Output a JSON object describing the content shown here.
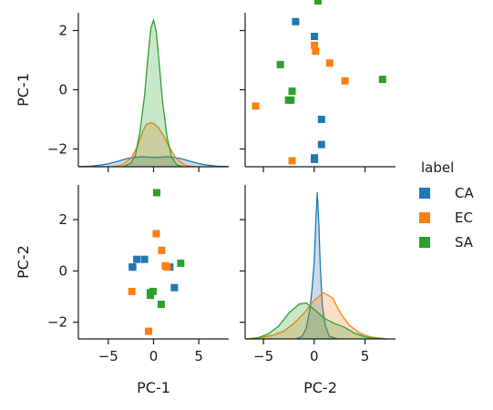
{
  "chart_data": {
    "type": "pairplot",
    "variables": [
      "PC-1",
      "PC-2"
    ],
    "hue_title": "label",
    "series": [
      {
        "name": "CA",
        "color": "#1f77b4",
        "marker": "square",
        "points": [
          {
            "pc1": 2.3,
            "pc2": -0.65
          },
          {
            "pc1": 1.8,
            "pc2": 0.15
          },
          {
            "pc1": -1.0,
            "pc2": 0.45
          },
          {
            "pc1": -2.35,
            "pc2": 0.15
          },
          {
            "pc1": -1.85,
            "pc2": 0.45
          },
          {
            "pc1": -2.3,
            "pc2": 0.15
          }
        ],
        "kde_pc1": [
          [
            -8.3,
            0.002
          ],
          [
            -7,
            0.005
          ],
          [
            -6,
            0.012
          ],
          [
            -5,
            0.025
          ],
          [
            -4,
            0.045
          ],
          [
            -3,
            0.068
          ],
          [
            -2,
            0.081
          ],
          [
            -1.2,
            0.085
          ],
          [
            -0.5,
            0.082
          ],
          [
            0,
            0.079
          ],
          [
            0.6,
            0.081
          ],
          [
            1.3,
            0.085
          ],
          [
            2,
            0.083
          ],
          [
            3,
            0.07
          ],
          [
            4,
            0.048
          ],
          [
            5,
            0.027
          ],
          [
            6,
            0.013
          ],
          [
            7,
            0.005
          ],
          [
            8.3,
            0.002
          ]
        ],
        "kde_pc2": [
          [
            -1.8,
            0
          ],
          [
            -1.2,
            0.01
          ],
          [
            -0.8,
            0.04
          ],
          [
            -0.4,
            0.12
          ],
          [
            -0.2,
            0.2
          ],
          [
            0,
            0.3
          ],
          [
            0.15,
            0.45
          ],
          [
            0.3,
            0.57
          ],
          [
            0.45,
            0.45
          ],
          [
            0.6,
            0.28
          ],
          [
            0.8,
            0.13
          ],
          [
            1.1,
            0.05
          ],
          [
            1.5,
            0.01
          ],
          [
            2.3,
            0
          ]
        ]
      },
      {
        "name": "EC",
        "color": "#ff7f0e",
        "marker": "square",
        "points": [
          {
            "pc1": 1.5,
            "pc2": 0.15
          },
          {
            "pc1": 0.3,
            "pc2": 1.45
          },
          {
            "pc1": 1.3,
            "pc2": 0.2
          },
          {
            "pc1": -2.4,
            "pc2": -0.8
          },
          {
            "pc1": 0.9,
            "pc2": 0.8
          },
          {
            "pc1": -0.55,
            "pc2": -2.35
          }
        ],
        "kde_pc1": [
          [
            -4.5,
            0.002
          ],
          [
            -3.5,
            0.015
          ],
          [
            -2.5,
            0.07
          ],
          [
            -1.8,
            0.17
          ],
          [
            -1.2,
            0.3
          ],
          [
            -0.8,
            0.36
          ],
          [
            -0.3,
            0.375
          ],
          [
            0,
            0.37
          ],
          [
            0.6,
            0.33
          ],
          [
            1.2,
            0.25
          ],
          [
            1.8,
            0.16
          ],
          [
            2.5,
            0.07
          ],
          [
            3.5,
            0.012
          ],
          [
            4.5,
            0.001
          ]
        ],
        "kde_pc2": [
          [
            -6.8,
            0
          ],
          [
            -5.5,
            0.004
          ],
          [
            -4,
            0.015
          ],
          [
            -3,
            0.03
          ],
          [
            -2,
            0.06
          ],
          [
            -1,
            0.1
          ],
          [
            0,
            0.15
          ],
          [
            0.9,
            0.18
          ],
          [
            1.8,
            0.16
          ],
          [
            2.6,
            0.1
          ],
          [
            3.4,
            0.055
          ],
          [
            4.5,
            0.022
          ],
          [
            5.5,
            0.008
          ],
          [
            7.2,
            0
          ]
        ]
      },
      {
        "name": "SA",
        "color": "#2ca02c",
        "marker": "square",
        "points": [
          {
            "pc1": 0.35,
            "pc2": 3.05
          },
          {
            "pc1": -0.35,
            "pc2": -0.95
          },
          {
            "pc1": -0.05,
            "pc2": -0.8
          },
          {
            "pc1": 0.85,
            "pc2": -1.3
          },
          {
            "pc1": 3.0,
            "pc2": 0.3
          },
          {
            "pc1": -0.35,
            "pc2": -0.85
          }
        ],
        "kde_pc1": [
          [
            -3.3,
            0.002
          ],
          [
            -2.5,
            0.03
          ],
          [
            -2,
            0.1
          ],
          [
            -1.5,
            0.3
          ],
          [
            -1,
            0.6
          ],
          [
            -0.6,
            0.95
          ],
          [
            -0.3,
            1.18
          ],
          [
            0,
            1.25
          ],
          [
            0.3,
            1.15
          ],
          [
            0.6,
            0.9
          ],
          [
            1,
            0.55
          ],
          [
            1.5,
            0.25
          ],
          [
            2,
            0.08
          ],
          [
            2.6,
            0.015
          ],
          [
            3.3,
            0.001
          ]
        ],
        "kde_pc2": [
          [
            -6.5,
            0
          ],
          [
            -5.5,
            0.005
          ],
          [
            -4.5,
            0.02
          ],
          [
            -3.5,
            0.05
          ],
          [
            -2.5,
            0.1
          ],
          [
            -1.5,
            0.135
          ],
          [
            -0.8,
            0.14
          ],
          [
            0,
            0.115
          ],
          [
            1,
            0.08
          ],
          [
            2,
            0.06
          ],
          [
            3,
            0.045
          ],
          [
            4,
            0.022
          ],
          [
            5,
            0.008
          ],
          [
            6,
            0.002
          ],
          [
            7,
            0
          ]
        ]
      }
    ],
    "axes": {
      "pc1_range": [
        -8.3,
        8.3
      ],
      "pc1_diag_range": [
        -2.6,
        2.6
      ],
      "pc2_range": [
        -2.65,
        3.35
      ],
      "pc2_diag_xrange": [
        -6.8,
        8.0
      ],
      "pc1_ticks": [
        -2,
        0,
        2
      ],
      "pc2_ticks": [
        -2,
        0,
        2
      ],
      "pc1_xticks": [
        -5,
        0,
        5
      ],
      "pc2_xticks": [
        -5,
        0,
        5
      ]
    },
    "legend_position": "right",
    "grid": false
  }
}
